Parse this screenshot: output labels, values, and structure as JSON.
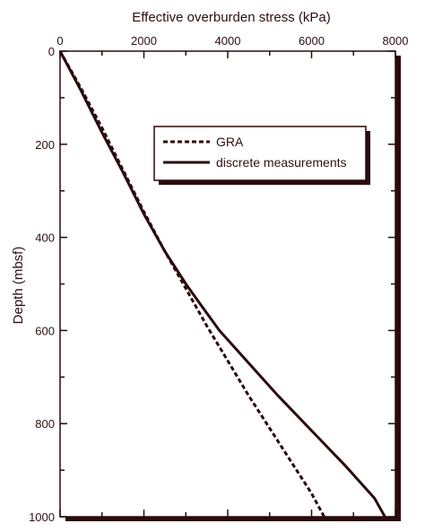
{
  "chart_data": {
    "type": "line",
    "xlabel": "Effective overburden stress (kPa)",
    "ylabel": "Depth (mbsf)",
    "xlim": [
      0,
      8000
    ],
    "ylim": [
      0,
      1000
    ],
    "y_inverted": true,
    "x_axis_position": "top",
    "x_ticks": [
      0,
      2000,
      4000,
      6000,
      8000
    ],
    "y_ticks": [
      0,
      200,
      400,
      600,
      800,
      1000
    ],
    "x_tick_labels": [
      "0",
      "2000",
      "4000",
      "6000",
      "8000"
    ],
    "y_tick_labels": [
      "0",
      "200",
      "400",
      "600",
      "800",
      "1000"
    ],
    "legend_placement": "top-right",
    "grid": false,
    "series": [
      {
        "name": "GRA",
        "style": "dashed",
        "color": "#2a0a0a",
        "x": [
          0,
          500,
          1000,
          1500,
          2000,
          2500,
          3000,
          3500,
          4000,
          4500,
          5000,
          5500,
          6000,
          6300
        ],
        "y": [
          0,
          80,
          165,
          255,
          345,
          430,
          510,
          590,
          665,
          740,
          810,
          880,
          950,
          1000
        ]
      },
      {
        "name": "discrete measurements",
        "style": "solid",
        "color": "#2a0a0a",
        "x": [
          0,
          500,
          1000,
          1500,
          2000,
          2500,
          3000,
          3400,
          3800,
          4500,
          5200,
          6000,
          6800,
          7500,
          7750
        ],
        "y": [
          0,
          85,
          175,
          260,
          350,
          430,
          500,
          550,
          600,
          670,
          740,
          815,
          890,
          960,
          1000
        ]
      }
    ]
  }
}
